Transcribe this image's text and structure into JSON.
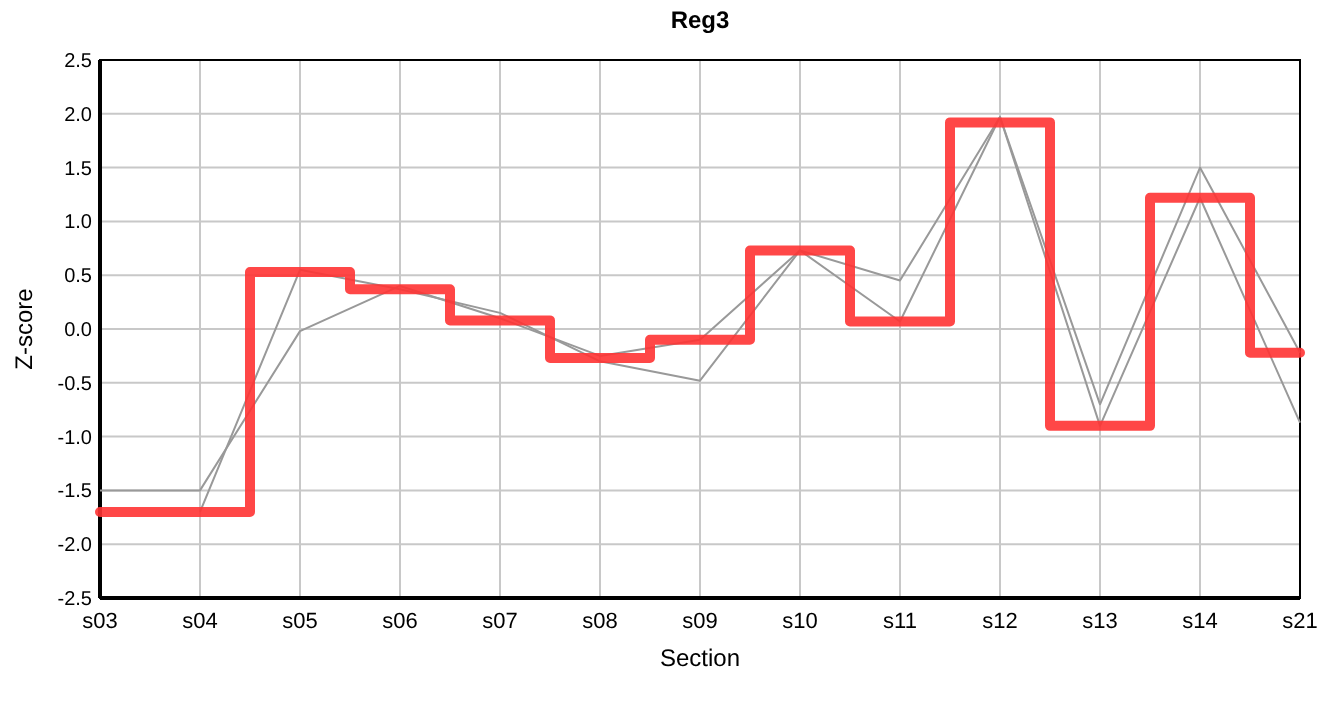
{
  "chart_data": {
    "type": "line",
    "title": "Reg3",
    "xlabel": "Section",
    "ylabel": "Z-score",
    "categories": [
      "s03",
      "s04",
      "s05",
      "s06",
      "s07",
      "s08",
      "s09",
      "s10",
      "s11",
      "s12",
      "s13",
      "s14",
      "s21"
    ],
    "series": [
      {
        "color": "#999999",
        "values": [
          -1.5,
          -1.5,
          -0.02,
          0.4,
          0.1,
          -0.25,
          -0.1,
          0.73,
          0.45,
          1.97,
          -0.7,
          1.5,
          -0.22
        ]
      },
      {
        "color": "#999999",
        "values": [
          null,
          -1.7,
          0.55,
          0.37,
          0.15,
          -0.3,
          -0.48,
          0.73,
          0.07,
          1.97,
          -0.9,
          1.22,
          -0.87
        ]
      },
      {
        "type": "step",
        "color": "#ff3333",
        "values": [
          -1.7,
          -1.7,
          0.53,
          0.37,
          0.08,
          -0.27,
          -0.1,
          0.73,
          0.07,
          1.92,
          -0.9,
          1.22,
          -0.22
        ]
      }
    ],
    "ylim": [
      -2.5,
      2.5
    ],
    "yticks": [
      {
        "value": -2.5,
        "label": "-2.5"
      },
      {
        "value": -2,
        "label": "-2.0"
      },
      {
        "value": -1.5,
        "label": "-1.5"
      },
      {
        "value": -1,
        "label": "-1.0"
      },
      {
        "value": -0.5,
        "label": "-0.5"
      },
      {
        "value": 0,
        "label": "0.0"
      },
      {
        "value": 0.5,
        "label": "0.5"
      },
      {
        "value": 1,
        "label": "1.0"
      },
      {
        "value": 1.5,
        "label": "1.5"
      },
      {
        "value": 2,
        "label": "2.0"
      },
      {
        "value": 2.5,
        "label": "2.5"
      }
    ],
    "grid": true
  }
}
